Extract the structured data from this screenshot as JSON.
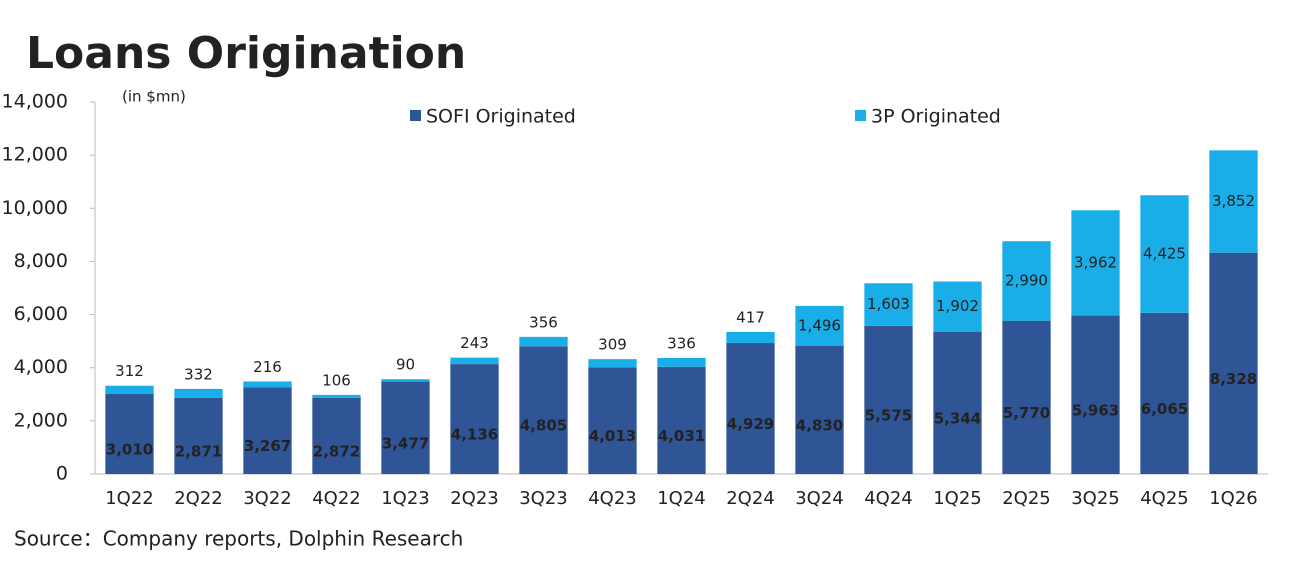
{
  "chart_data": {
    "type": "stacked-bar",
    "title": "Loans Origination",
    "subtitle": "(in $mn)",
    "source": "Source：Company reports, Dolphin Research",
    "categories": [
      "1Q22",
      "2Q22",
      "3Q22",
      "4Q22",
      "1Q23",
      "2Q23",
      "3Q23",
      "4Q23",
      "1Q24",
      "2Q24",
      "3Q24",
      "4Q24",
      "1Q25",
      "2Q25",
      "3Q25",
      "4Q25",
      "1Q26"
    ],
    "series": [
      {
        "name": "SOFI Originated",
        "color": "#2f5597",
        "values": [
          3010,
          2871,
          3267,
          2872,
          3477,
          4136,
          4805,
          4013,
          4031,
          4929,
          4830,
          5575,
          5344,
          5770,
          5963,
          6065,
          8328
        ],
        "value_labels": [
          "3,010",
          "2,871",
          "3,267",
          "2,872",
          "3,477",
          "4,136",
          "4,805",
          "4,013",
          "4,031",
          "4,929",
          "4,830",
          "5,575",
          "5,344",
          "5,770",
          "5,963",
          "6,065",
          "8,328"
        ]
      },
      {
        "name": "3P Originated",
        "color": "#1aaee8",
        "values": [
          312,
          332,
          216,
          106,
          90,
          243,
          356,
          309,
          336,
          417,
          1496,
          1603,
          1902,
          2990,
          3962,
          4425,
          3852
        ],
        "value_labels": [
          "312",
          "332",
          "216",
          "106",
          "90",
          "243",
          "356",
          "309",
          "336",
          "417",
          "1,496",
          "1,603",
          "1,902",
          "2,990",
          "3,962",
          "4,425",
          "3,852"
        ]
      }
    ],
    "ylim": [
      0,
      14000
    ],
    "yticks": [
      0,
      {
        "value": 2000,
        "label": "2,000"
      },
      {
        "value": 4000,
        "label": "4,000"
      },
      {
        "value": 6000,
        "label": "6,000"
      },
      {
        "value": 8000,
        "label": "8,000"
      },
      {
        "value": 10000,
        "label": "10,000"
      },
      {
        "value": 12000,
        "label": "12,000"
      },
      {
        "value": 14000,
        "label": "14,000"
      }
    ]
  }
}
